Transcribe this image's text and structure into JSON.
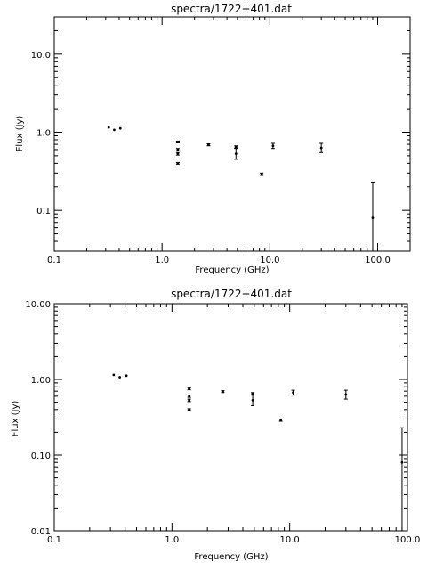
{
  "chart_data": [
    {
      "type": "scatter",
      "title": "spectra/1722+401.dat",
      "xlabel": "Frequency (GHz)",
      "ylabel": "Flux (Jy)",
      "xscale": "log",
      "yscale": "log",
      "xlim": [
        0.1,
        200
      ],
      "ylim": [
        0.03,
        30
      ],
      "xticks": [
        {
          "value": 0.1,
          "label": "0.1"
        },
        {
          "value": 1,
          "label": "1.0"
        },
        {
          "value": 10,
          "label": "10.0"
        },
        {
          "value": 100,
          "label": "100.0"
        }
      ],
      "yticks": [
        {
          "value": 0.1,
          "label": "0.1"
        },
        {
          "value": 1,
          "label": "1.0"
        },
        {
          "value": 10,
          "label": "10.0"
        }
      ],
      "points": [
        {
          "x": 0.32,
          "y": 1.15,
          "ylo": 1.15,
          "yhi": 1.15
        },
        {
          "x": 0.36,
          "y": 1.07,
          "ylo": 1.07,
          "yhi": 1.07
        },
        {
          "x": 0.41,
          "y": 1.12,
          "ylo": 1.12,
          "yhi": 1.12
        },
        {
          "x": 1.4,
          "y": 0.75,
          "ylo": 0.73,
          "yhi": 0.77
        },
        {
          "x": 1.4,
          "y": 0.6,
          "ylo": 0.58,
          "yhi": 0.62
        },
        {
          "x": 1.4,
          "y": 0.53,
          "ylo": 0.51,
          "yhi": 0.55
        },
        {
          "x": 1.4,
          "y": 0.4,
          "ylo": 0.39,
          "yhi": 0.41
        },
        {
          "x": 2.7,
          "y": 0.69,
          "ylo": 0.67,
          "yhi": 0.71
        },
        {
          "x": 4.85,
          "y": 0.65,
          "ylo": 0.63,
          "yhi": 0.67
        },
        {
          "x": 4.85,
          "y": 0.53,
          "ylo": 0.45,
          "yhi": 0.62
        },
        {
          "x": 8.4,
          "y": 0.29,
          "ylo": 0.28,
          "yhi": 0.3
        },
        {
          "x": 10.7,
          "y": 0.67,
          "ylo": 0.62,
          "yhi": 0.72
        },
        {
          "x": 30,
          "y": 0.63,
          "ylo": 0.55,
          "yhi": 0.72
        },
        {
          "x": 90,
          "y": 0.08,
          "ylo": 0.03,
          "yhi": 0.23
        }
      ]
    },
    {
      "type": "scatter",
      "title": "spectra/1722+401.dat",
      "xlabel": "Frequency (GHz)",
      "ylabel": "Flux (Jy)",
      "xscale": "log",
      "yscale": "log",
      "xlim": [
        0.1,
        100
      ],
      "ylim": [
        0.01,
        10
      ],
      "xticks": [
        {
          "value": 0.1,
          "label": "0.1"
        },
        {
          "value": 1,
          "label": "1.0"
        },
        {
          "value": 10,
          "label": "10.0"
        },
        {
          "value": 100,
          "label": "100.0"
        }
      ],
      "yticks": [
        {
          "value": 0.01,
          "label": "0.01"
        },
        {
          "value": 0.1,
          "label": "0.10"
        },
        {
          "value": 1,
          "label": "1.00"
        },
        {
          "value": 10,
          "label": "10.00"
        }
      ],
      "points": [
        {
          "x": 0.32,
          "y": 1.15,
          "ylo": 1.15,
          "yhi": 1.15
        },
        {
          "x": 0.36,
          "y": 1.07,
          "ylo": 1.07,
          "yhi": 1.07
        },
        {
          "x": 0.41,
          "y": 1.12,
          "ylo": 1.12,
          "yhi": 1.12
        },
        {
          "x": 1.4,
          "y": 0.75,
          "ylo": 0.73,
          "yhi": 0.77
        },
        {
          "x": 1.4,
          "y": 0.6,
          "ylo": 0.58,
          "yhi": 0.62
        },
        {
          "x": 1.4,
          "y": 0.53,
          "ylo": 0.51,
          "yhi": 0.55
        },
        {
          "x": 1.4,
          "y": 0.4,
          "ylo": 0.39,
          "yhi": 0.41
        },
        {
          "x": 2.7,
          "y": 0.69,
          "ylo": 0.67,
          "yhi": 0.71
        },
        {
          "x": 4.85,
          "y": 0.65,
          "ylo": 0.63,
          "yhi": 0.67
        },
        {
          "x": 4.85,
          "y": 0.53,
          "ylo": 0.45,
          "yhi": 0.62
        },
        {
          "x": 8.4,
          "y": 0.29,
          "ylo": 0.28,
          "yhi": 0.3
        },
        {
          "x": 10.7,
          "y": 0.67,
          "ylo": 0.62,
          "yhi": 0.72
        },
        {
          "x": 30,
          "y": 0.63,
          "ylo": 0.55,
          "yhi": 0.72
        },
        {
          "x": 90,
          "y": 0.08,
          "ylo": 0.01,
          "yhi": 0.23
        }
      ]
    }
  ]
}
